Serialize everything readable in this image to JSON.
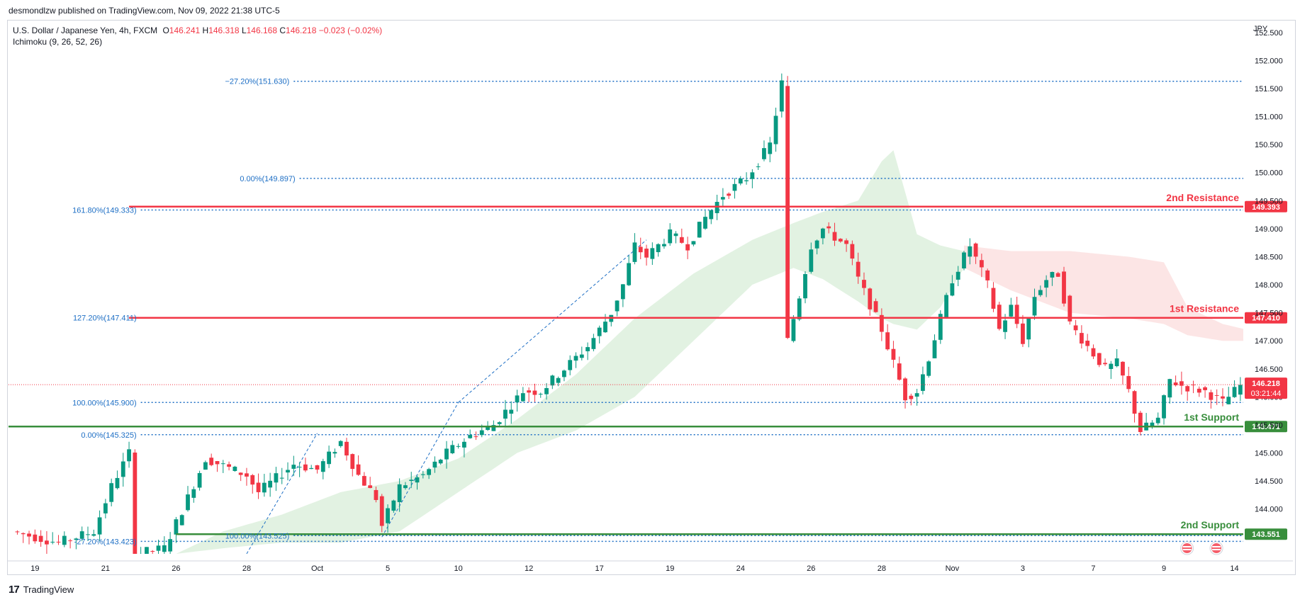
{
  "header": {
    "published": "desmondlzw published on TradingView.com, Nov 09, 2022 21:38 UTC-5"
  },
  "legend": {
    "symbol": "U.S. Dollar / Japanese Yen, 4h, FXCM",
    "o_label": "O",
    "o": "146.241",
    "h_label": "H",
    "h": "146.318",
    "l_label": "L",
    "l": "146.168",
    "c_label": "C",
    "c": "146.218",
    "change": "−0.023 (−0.02%)",
    "indicator": "Ichimoku (9, 26, 52, 26)"
  },
  "footer": {
    "brand": "TradingView"
  },
  "colors": {
    "bull": "#089981",
    "bear": "#f23645",
    "fib": "#1e6fc5",
    "cloud_bull": "#d8eed8",
    "cloud_bear": "#fbdcdc"
  },
  "chart_data": {
    "type": "candlestick",
    "title": "U.S. Dollar / Japanese Yen, 4h, FXCM",
    "currency": "JPY",
    "ylim": [
      143.2,
      152.7
    ],
    "y_ticks": [
      "144.000",
      "144.500",
      "145.000",
      "145.500",
      "146.000",
      "146.500",
      "147.000",
      "147.500",
      "148.000",
      "148.500",
      "149.000",
      "149.500",
      "150.000",
      "150.500",
      "151.000",
      "151.500",
      "152.000",
      "152.500"
    ],
    "x_ticks": [
      {
        "label": "19",
        "i": 4
      },
      {
        "label": "21",
        "i": 16
      },
      {
        "label": "26",
        "i": 28
      },
      {
        "label": "28",
        "i": 40
      },
      {
        "label": "Oct",
        "i": 52
      },
      {
        "label": "5",
        "i": 64
      },
      {
        "label": "10",
        "i": 76
      },
      {
        "label": "12",
        "i": 88
      },
      {
        "label": "17",
        "i": 100
      },
      {
        "label": "19",
        "i": 112
      },
      {
        "label": "24",
        "i": 124
      },
      {
        "label": "26",
        "i": 136
      },
      {
        "label": "28",
        "i": 148
      },
      {
        "label": "Nov",
        "i": 160
      },
      {
        "label": "3",
        "i": 172
      },
      {
        "label": "7",
        "i": 184
      },
      {
        "label": "9",
        "i": 196
      },
      {
        "label": "14",
        "i": 208
      }
    ],
    "horizontal_levels": [
      {
        "name": "2nd Resistance",
        "value": 149.393,
        "label": "149.393",
        "color": "#f23645"
      },
      {
        "name": "1st Resistance",
        "value": 147.41,
        "label": "147.410",
        "color": "#f23645"
      },
      {
        "name": "1st Support",
        "value": 145.471,
        "label": "145.471",
        "color": "#388e3c"
      },
      {
        "name": "2nd Support",
        "value": 143.551,
        "label": "143.551",
        "color": "#388e3c"
      }
    ],
    "fib_levels": [
      {
        "text": "−27.20%(151.630)",
        "value": 151.63
      },
      {
        "text": "0.00%(149.897)",
        "value": 149.897
      },
      {
        "text": "161.80%(149.333)",
        "value": 149.333
      },
      {
        "text": "127.20%(147.411)",
        "value": 147.411
      },
      {
        "text": "100.00%(145.900)",
        "value": 145.9
      },
      {
        "text": "0.00%(145.325)",
        "value": 145.325
      },
      {
        "text": "100.00%(143.525)",
        "value": 143.525
      },
      {
        "text": "-27.20%(143.423)",
        "value": 143.423
      }
    ],
    "current_price": {
      "value": 146.218,
      "label": "146.218",
      "countdown": "03:21:44"
    },
    "n_bars": 210,
    "close_anchors": [
      [
        0,
        143.6
      ],
      [
        8,
        143.4
      ],
      [
        14,
        143.6
      ],
      [
        17,
        144.4
      ],
      [
        20,
        145.0
      ],
      [
        21,
        143.2
      ],
      [
        26,
        143.3
      ],
      [
        30,
        144.2
      ],
      [
        33,
        144.9
      ],
      [
        40,
        144.6
      ],
      [
        42,
        144.3
      ],
      [
        48,
        144.8
      ],
      [
        52,
        144.7
      ],
      [
        56,
        145.2
      ],
      [
        59,
        144.6
      ],
      [
        62,
        144.2
      ],
      [
        63,
        143.7
      ],
      [
        66,
        144.4
      ],
      [
        70,
        144.6
      ],
      [
        74,
        145.0
      ],
      [
        78,
        145.3
      ],
      [
        82,
        145.5
      ],
      [
        87,
        146.1
      ],
      [
        90,
        146.1
      ],
      [
        94,
        146.5
      ],
      [
        98,
        146.9
      ],
      [
        102,
        147.5
      ],
      [
        104,
        148.0
      ],
      [
        106,
        148.7
      ],
      [
        108,
        148.5
      ],
      [
        112,
        148.9
      ],
      [
        115,
        148.7
      ],
      [
        118,
        149.2
      ],
      [
        121,
        149.6
      ],
      [
        125,
        149.9
      ],
      [
        129,
        150.5
      ],
      [
        131,
        151.6
      ],
      [
        132,
        147.0
      ],
      [
        134,
        147.8
      ],
      [
        136,
        148.7
      ],
      [
        138,
        149.0
      ],
      [
        142,
        148.7
      ],
      [
        144,
        148.1
      ],
      [
        148,
        147.2
      ],
      [
        150,
        146.6
      ],
      [
        152,
        146.0
      ],
      [
        154,
        146.1
      ],
      [
        156,
        146.7
      ],
      [
        158,
        147.4
      ],
      [
        160,
        148.1
      ],
      [
        163,
        148.7
      ],
      [
        166,
        148.0
      ],
      [
        168,
        147.2
      ],
      [
        170,
        147.6
      ],
      [
        172,
        147.0
      ],
      [
        174,
        147.8
      ],
      [
        176,
        148.1
      ],
      [
        178,
        148.2
      ],
      [
        180,
        147.3
      ],
      [
        183,
        146.9
      ],
      [
        186,
        146.5
      ],
      [
        188,
        146.6
      ],
      [
        190,
        146.1
      ],
      [
        192,
        145.4
      ],
      [
        195,
        145.6
      ],
      [
        197,
        146.3
      ],
      [
        199,
        146.2
      ],
      [
        203,
        146.1
      ],
      [
        206,
        145.9
      ],
      [
        209,
        146.2
      ]
    ],
    "cloud_bull_upper": [
      [
        28,
        143.2
      ],
      [
        36,
        143.6
      ],
      [
        46,
        143.9
      ],
      [
        56,
        144.3
      ],
      [
        66,
        144.5
      ],
      [
        76,
        144.9
      ],
      [
        86,
        145.6
      ],
      [
        96,
        146.4
      ],
      [
        106,
        147.4
      ],
      [
        116,
        148.2
      ],
      [
        126,
        148.8
      ],
      [
        133,
        149.1
      ],
      [
        138,
        149.3
      ],
      [
        144,
        149.5
      ],
      [
        148,
        150.2
      ],
      [
        150,
        150.4
      ],
      [
        154,
        148.9
      ],
      [
        158,
        148.7
      ],
      [
        162,
        148.6
      ]
    ],
    "cloud_bull_lower": [
      [
        28,
        143.2
      ],
      [
        36,
        143.3
      ],
      [
        46,
        143.4
      ],
      [
        56,
        143.4
      ],
      [
        66,
        143.6
      ],
      [
        76,
        144.3
      ],
      [
        86,
        145.0
      ],
      [
        96,
        145.4
      ],
      [
        106,
        146.0
      ],
      [
        116,
        147.0
      ],
      [
        126,
        148.0
      ],
      [
        133,
        148.3
      ],
      [
        138,
        148.1
      ],
      [
        144,
        147.7
      ],
      [
        148,
        147.4
      ],
      [
        150,
        147.3
      ],
      [
        154,
        147.2
      ],
      [
        158,
        147.6
      ],
      [
        162,
        148.3
      ]
    ],
    "cloud_bear_upper": [
      [
        162,
        148.7
      ],
      [
        170,
        148.6
      ],
      [
        180,
        148.6
      ],
      [
        190,
        148.5
      ],
      [
        196,
        148.4
      ],
      [
        200,
        147.6
      ],
      [
        206,
        147.3
      ],
      [
        210,
        147.2
      ]
    ],
    "cloud_bear_lower": [
      [
        162,
        148.3
      ],
      [
        170,
        147.9
      ],
      [
        180,
        147.5
      ],
      [
        190,
        147.4
      ],
      [
        196,
        147.3
      ],
      [
        200,
        147.1
      ],
      [
        206,
        147.0
      ],
      [
        210,
        147.0
      ]
    ]
  }
}
